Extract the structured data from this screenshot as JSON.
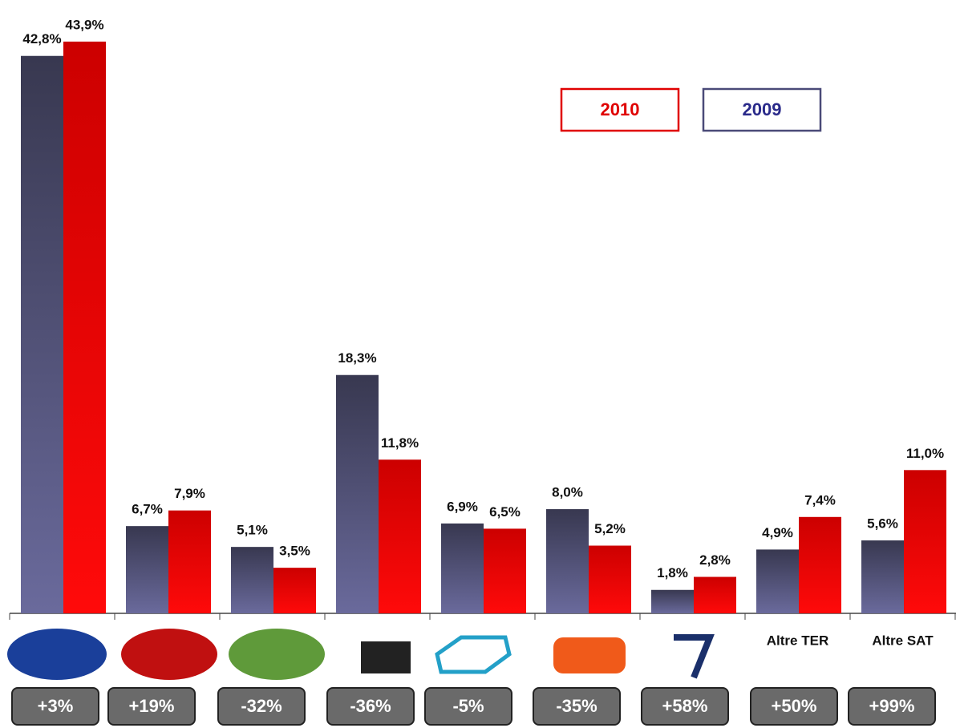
{
  "chart_data": {
    "type": "bar",
    "categories": [
      null,
      null,
      null,
      null,
      null,
      null,
      null,
      "Altre TER",
      "Altre SAT"
    ],
    "series": [
      {
        "name": "2009",
        "color": "#4a4a78",
        "values": [
          42.8,
          6.7,
          5.1,
          18.3,
          6.9,
          8.0,
          1.8,
          4.9,
          5.6
        ],
        "value_labels": [
          "42,8%",
          "6,7%",
          "5,1%",
          "18,3%",
          "6,9%",
          "8,0%",
          "1,8%",
          "4,9%",
          "5,6%"
        ]
      },
      {
        "name": "2010",
        "color": "#e00000",
        "values": [
          43.9,
          7.9,
          3.5,
          11.8,
          6.5,
          5.2,
          2.8,
          7.4,
          11.0
        ],
        "value_labels": [
          "43,9%",
          "7,9%",
          "3,5%",
          "11,8%",
          "6,5%",
          "5,2%",
          "2,8%",
          "7,4%",
          "11,0%"
        ]
      }
    ],
    "changes": [
      "+3%",
      "+19%",
      "-32%",
      "-36%",
      "-5%",
      "-35%",
      "+58%",
      "+50%",
      "+99%"
    ],
    "ylim": [
      0,
      45
    ]
  }
}
